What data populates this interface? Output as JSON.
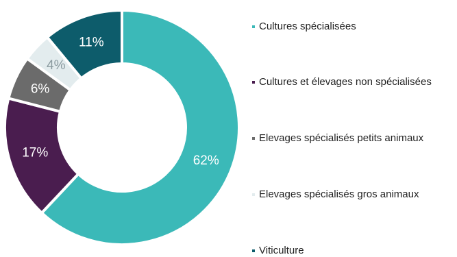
{
  "chart_data": {
    "type": "pie",
    "variant": "donut",
    "categories": [
      "Cultures spécialisées",
      "Cultures et élevages non spécialisées",
      "Elevages spécialisés petits animaux",
      "Elevages spécialisés gros animaux",
      "Viticulture"
    ],
    "values": [
      62,
      17,
      6,
      4,
      11
    ],
    "data_labels": [
      "62%",
      "17%",
      "6%",
      "4%",
      "11%"
    ],
    "colors": [
      "#3bb9b8",
      "#4a1d4f",
      "#6b6b6b",
      "#e3ecee",
      "#0d5c6b"
    ],
    "label_colors": [
      "#ffffff",
      "#ffffff",
      "#ffffff",
      "#8a9a9f",
      "#ffffff"
    ],
    "legend_position": "right"
  }
}
